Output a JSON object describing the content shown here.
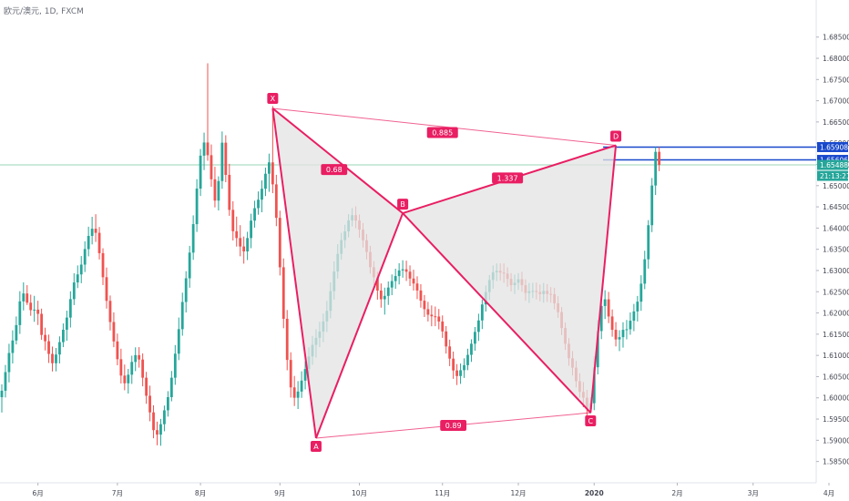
{
  "header": {
    "title": "欧元/澳元, 1D, FXCM"
  },
  "colors": {
    "up": "#26a69a",
    "down": "#ef5350",
    "pattern": "#e91e63",
    "fill": "#e3e3e3",
    "blue": "#1848cc",
    "green_line": "#9ad6b5",
    "axis_text": "#434651",
    "border": "#e0e3eb"
  },
  "chart_data": {
    "type": "candlestick",
    "title": "欧元/澳元, 1D, FXCM",
    "ylim": [
      1.583,
      1.6915
    ],
    "y_ticks": [
      "1.68500",
      "1.68000",
      "1.67500",
      "1.67000",
      "1.66500",
      "1.66000",
      "1.65500",
      "1.65000",
      "1.64500",
      "1.64000",
      "1.63500",
      "1.63000",
      "1.62500",
      "1.62000",
      "1.61500",
      "1.61000",
      "1.60500",
      "1.60000",
      "1.59500",
      "1.59000",
      "1.58500"
    ],
    "x_ticks": [
      {
        "label": "6月",
        "i": 10
      },
      {
        "label": "7月",
        "i": 32
      },
      {
        "label": "8月",
        "i": 55
      },
      {
        "label": "9月",
        "i": 77
      },
      {
        "label": "10月",
        "i": 99
      },
      {
        "label": "11月",
        "i": 122
      },
      {
        "label": "12月",
        "i": 143
      },
      {
        "label": "2020",
        "i": 164
      },
      {
        "label": "2月",
        "i": 187
      },
      {
        "label": "3月",
        "i": 208
      },
      {
        "label": "4月",
        "i": 229
      }
    ],
    "harmonic_pattern": {
      "points": [
        {
          "label": "X",
          "i": 75,
          "price": 1.6682
        },
        {
          "label": "A",
          "i": 87,
          "price": 1.5905
        },
        {
          "label": "B",
          "i": 111,
          "price": 1.6435
        },
        {
          "label": "C",
          "i": 163,
          "price": 1.5965
        },
        {
          "label": "D",
          "i": 170,
          "price": 1.6595
        }
      ],
      "ratios": [
        {
          "label": "0.68",
          "i": 92,
          "price": 1.6538
        },
        {
          "label": "0.885",
          "i": 122,
          "price": 1.6625
        },
        {
          "label": "1.337",
          "i": 140,
          "price": 1.6518
        },
        {
          "label": "0.89",
          "i": 125,
          "price": 1.5935
        }
      ]
    },
    "levels": [
      {
        "price": 1.65908,
        "label": "1.65908",
        "color": "#1848cc"
      },
      {
        "price": 1.65606,
        "label": "1.65606",
        "color": "#1848cc"
      },
      {
        "price": 1.65488,
        "label": "1.65488",
        "color": "#26a69a"
      }
    ],
    "countdown": "21:13:21",
    "candles": [
      [
        1.60015,
        1.6032,
        1.59653,
        1.60168
      ],
      [
        1.60168,
        1.60775,
        1.60009,
        1.60606
      ],
      [
        1.60606,
        1.61274,
        1.60365,
        1.61057
      ],
      [
        1.61057,
        1.61591,
        1.6081,
        1.61351
      ],
      [
        1.61351,
        1.61917,
        1.61259,
        1.61714
      ],
      [
        1.61714,
        1.62513,
        1.61506,
        1.62273
      ],
      [
        1.62273,
        1.6272,
        1.62059,
        1.62459
      ],
      [
        1.62459,
        1.62655,
        1.62188,
        1.62242
      ],
      [
        1.62242,
        1.62432,
        1.61933,
        1.62066
      ],
      [
        1.62066,
        1.62403,
        1.61791,
        1.62078
      ],
      [
        1.62078,
        1.62288,
        1.61717,
        1.61979
      ],
      [
        1.61979,
        1.62102,
        1.61366,
        1.61482
      ],
      [
        1.61482,
        1.61653,
        1.61117,
        1.61334
      ],
      [
        1.61334,
        1.6149,
        1.60822,
        1.61035
      ],
      [
        1.61035,
        1.61208,
        1.60621,
        1.60815
      ],
      [
        1.60815,
        1.61174,
        1.60624,
        1.61021
      ],
      [
        1.61021,
        1.61449,
        1.60811,
        1.61313
      ],
      [
        1.61313,
        1.61753,
        1.61195,
        1.61605
      ],
      [
        1.61605,
        1.62053,
        1.61346,
        1.61891
      ],
      [
        1.61891,
        1.62511,
        1.61657,
        1.62326
      ],
      [
        1.62326,
        1.62935,
        1.62186,
        1.62719
      ],
      [
        1.62719,
        1.6312,
        1.62586,
        1.62908
      ],
      [
        1.62908,
        1.63341,
        1.62701,
        1.63139
      ],
      [
        1.63139,
        1.63688,
        1.62964,
        1.63505
      ],
      [
        1.63505,
        1.64032,
        1.63334,
        1.63815
      ],
      [
        1.63815,
        1.64266,
        1.63615,
        1.63985
      ],
      [
        1.63985,
        1.64327,
        1.63673,
        1.63888
      ],
      [
        1.63888,
        1.64026,
        1.6326,
        1.63408
      ],
      [
        1.63408,
        1.63524,
        1.62656,
        1.62842
      ],
      [
        1.62842,
        1.6307,
        1.62103,
        1.62285
      ],
      [
        1.62285,
        1.62412,
        1.61587,
        1.61786
      ],
      [
        1.61786,
        1.62014,
        1.61194,
        1.61329
      ],
      [
        1.61329,
        1.61514,
        1.60767,
        1.6091
      ],
      [
        1.6091,
        1.61158,
        1.60338,
        1.60524
      ],
      [
        1.60524,
        1.60784,
        1.60178,
        1.60343
      ],
      [
        1.60343,
        1.60682,
        1.60101,
        1.60545
      ],
      [
        1.60545,
        1.60993,
        1.60329,
        1.60846
      ],
      [
        1.60846,
        1.6119,
        1.6063,
        1.61006
      ],
      [
        1.61006,
        1.61195,
        1.60711,
        1.60903
      ],
      [
        1.60903,
        1.61047,
        1.60271,
        1.60474
      ],
      [
        1.60474,
        1.60612,
        1.5986,
        1.60049
      ],
      [
        1.60049,
        1.60287,
        1.59448,
        1.59658
      ],
      [
        1.59658,
        1.59825,
        1.59048,
        1.59239
      ],
      [
        1.59239,
        1.59439,
        1.58882,
        1.59134
      ],
      [
        1.59134,
        1.59504,
        1.58871,
        1.59379
      ],
      [
        1.59379,
        1.59818,
        1.59212,
        1.59706
      ],
      [
        1.59706,
        1.60157,
        1.59558,
        1.60016
      ],
      [
        1.60016,
        1.60633,
        1.59918,
        1.60474
      ],
      [
        1.60474,
        1.61244,
        1.60307,
        1.6104
      ],
      [
        1.6104,
        1.61893,
        1.60889,
        1.61618
      ],
      [
        1.61618,
        1.62478,
        1.61464,
        1.62258
      ],
      [
        1.62258,
        1.62984,
        1.62012,
        1.62817
      ],
      [
        1.62817,
        1.63581,
        1.62594,
        1.63422
      ],
      [
        1.63422,
        1.64299,
        1.63251,
        1.64093
      ],
      [
        1.64093,
        1.65153,
        1.63909,
        1.6493
      ],
      [
        1.6493,
        1.65863,
        1.64755,
        1.65706
      ],
      [
        1.65706,
        1.66249,
        1.65366,
        1.66016
      ],
      [
        1.66016,
        1.67882,
        1.65586,
        1.65717
      ],
      [
        1.65717,
        1.6597,
        1.64972,
        1.65149
      ],
      [
        1.65149,
        1.65443,
        1.64487,
        1.64647
      ],
      [
        1.64647,
        1.65219,
        1.64415,
        1.65108
      ],
      [
        1.65108,
        1.66276,
        1.64925,
        1.66012
      ],
      [
        1.66012,
        1.66187,
        1.6508,
        1.65253
      ],
      [
        1.65253,
        1.65513,
        1.64288,
        1.64429
      ],
      [
        1.64429,
        1.64634,
        1.63708,
        1.63926
      ],
      [
        1.63926,
        1.6427,
        1.63564,
        1.63765
      ],
      [
        1.63765,
        1.64069,
        1.63336,
        1.63566
      ],
      [
        1.63566,
        1.63801,
        1.63162,
        1.6345
      ],
      [
        1.6345,
        1.63912,
        1.63246,
        1.63765
      ],
      [
        1.63765,
        1.64338,
        1.63526,
        1.64176
      ],
      [
        1.64176,
        1.64645,
        1.64011,
        1.64469
      ],
      [
        1.64469,
        1.64863,
        1.64315,
        1.64669
      ],
      [
        1.64669,
        1.65122,
        1.64373,
        1.64927
      ],
      [
        1.64927,
        1.65424,
        1.64754,
        1.6528
      ],
      [
        1.6528,
        1.65754,
        1.64854,
        1.65548
      ],
      [
        1.65548,
        1.66874,
        1.64822,
        1.6503
      ],
      [
        1.6503,
        1.65255,
        1.64045,
        1.64241
      ],
      [
        1.64241,
        1.64409,
        1.62883,
        1.63076
      ],
      [
        1.63076,
        1.63285,
        1.6164,
        1.61863
      ],
      [
        1.61863,
        1.62069,
        1.60649,
        1.60893
      ],
      [
        1.60893,
        1.61074,
        1.60007,
        1.60246
      ],
      [
        1.60246,
        1.60516,
        1.59807,
        1.60002
      ],
      [
        1.60002,
        1.60394,
        1.59737,
        1.60148
      ],
      [
        1.60148,
        1.60625,
        1.59999,
        1.60406
      ],
      [
        1.60406,
        1.60867,
        1.60199,
        1.60678
      ],
      [
        1.60678,
        1.61191,
        1.60441,
        1.60976
      ],
      [
        1.60976,
        1.61459,
        1.60778,
        1.61248
      ],
      [
        1.61248,
        1.61614,
        1.6095,
        1.61414
      ],
      [
        1.61414,
        1.61792,
        1.61194,
        1.61563
      ],
      [
        1.61563,
        1.61987,
        1.61314,
        1.61801
      ],
      [
        1.61801,
        1.62283,
        1.61551,
        1.6205
      ],
      [
        1.6205,
        1.6272,
        1.61874,
        1.62514
      ],
      [
        1.62514,
        1.63215,
        1.62315,
        1.62977
      ],
      [
        1.62977,
        1.63622,
        1.6281,
        1.63392
      ],
      [
        1.63392,
        1.63888,
        1.63254,
        1.63716
      ],
      [
        1.63716,
        1.64078,
        1.6353,
        1.63922
      ],
      [
        1.63922,
        1.64328,
        1.63779,
        1.64181
      ],
      [
        1.64181,
        1.64471,
        1.64039,
        1.64304
      ],
      [
        1.64304,
        1.64512,
        1.63997,
        1.64178
      ],
      [
        1.64178,
        1.6432,
        1.63771,
        1.63963
      ],
      [
        1.63963,
        1.64118,
        1.63541,
        1.63714
      ],
      [
        1.63714,
        1.63861,
        1.63262,
        1.63437
      ],
      [
        1.63437,
        1.63581,
        1.62928,
        1.63078
      ],
      [
        1.63078,
        1.6322,
        1.62656,
        1.62842
      ],
      [
        1.62842,
        1.62969,
        1.62313,
        1.62528
      ],
      [
        1.62528,
        1.62695,
        1.62124,
        1.62323
      ],
      [
        1.62323,
        1.62596,
        1.61961,
        1.62402
      ],
      [
        1.62402,
        1.62742,
        1.6219,
        1.62599
      ],
      [
        1.62599,
        1.62907,
        1.62419,
        1.62751
      ],
      [
        1.62751,
        1.63043,
        1.62569,
        1.62869
      ],
      [
        1.62869,
        1.63171,
        1.62672,
        1.63002
      ],
      [
        1.63002,
        1.63242,
        1.62831,
        1.63028
      ],
      [
        1.63028,
        1.63232,
        1.62753,
        1.62972
      ],
      [
        1.62972,
        1.63121,
        1.62634,
        1.62811
      ],
      [
        1.62811,
        1.63019,
        1.62528,
        1.62694
      ],
      [
        1.62694,
        1.62863,
        1.62326,
        1.62529
      ],
      [
        1.62529,
        1.62679,
        1.62125,
        1.62289
      ],
      [
        1.62289,
        1.62423,
        1.61905,
        1.62089
      ],
      [
        1.62089,
        1.62262,
        1.61799,
        1.61959
      ],
      [
        1.61959,
        1.62177,
        1.61686,
        1.61922
      ],
      [
        1.61922,
        1.62151,
        1.61688,
        1.61915
      ],
      [
        1.61915,
        1.62094,
        1.61614,
        1.61798
      ],
      [
        1.61798,
        1.61942,
        1.61413,
        1.61565
      ],
      [
        1.61565,
        1.61692,
        1.61043,
        1.61211
      ],
      [
        1.61211,
        1.61371,
        1.60747,
        1.60924
      ],
      [
        1.60924,
        1.6109,
        1.60448,
        1.60645
      ],
      [
        1.60645,
        1.60795,
        1.60302,
        1.60514
      ],
      [
        1.60514,
        1.60808,
        1.60329,
        1.60651
      ],
      [
        1.60651,
        1.60931,
        1.60469,
        1.6077
      ],
      [
        1.6077,
        1.61157,
        1.60652,
        1.61013
      ],
      [
        1.61013,
        1.61379,
        1.60847,
        1.61275
      ],
      [
        1.61275,
        1.61669,
        1.61111,
        1.61554
      ],
      [
        1.61554,
        1.61982,
        1.61341,
        1.61823
      ],
      [
        1.61823,
        1.62317,
        1.61621,
        1.62201
      ],
      [
        1.62201,
        1.62646,
        1.62033,
        1.62493
      ],
      [
        1.62493,
        1.62893,
        1.62302,
        1.62777
      ],
      [
        1.62777,
        1.63119,
        1.62572,
        1.62958
      ],
      [
        1.62958,
        1.63167,
        1.62751,
        1.62993
      ],
      [
        1.62993,
        1.63169,
        1.6276,
        1.62951
      ],
      [
        1.62951,
        1.63165,
        1.62711,
        1.62928
      ],
      [
        1.62928,
        1.63074,
        1.62616,
        1.62802
      ],
      [
        1.62802,
        1.62938,
        1.62509,
        1.62655
      ],
      [
        1.62655,
        1.62904,
        1.62446,
        1.62711
      ],
      [
        1.62711,
        1.62939,
        1.62542,
        1.62795
      ],
      [
        1.62795,
        1.6297,
        1.62499,
        1.62654
      ],
      [
        1.62654,
        1.62791,
        1.62286,
        1.6247
      ],
      [
        1.6247,
        1.62706,
        1.62237,
        1.62511
      ],
      [
        1.62511,
        1.6271,
        1.62351,
        1.62519
      ],
      [
        1.62519,
        1.62716,
        1.62319,
        1.62494
      ],
      [
        1.62494,
        1.62672,
        1.62275,
        1.62444
      ],
      [
        1.62444,
        1.62706,
        1.62242,
        1.6252
      ],
      [
        1.6252,
        1.62683,
        1.62258,
        1.62448
      ],
      [
        1.62448,
        1.6261,
        1.6224,
        1.62442
      ],
      [
        1.62442,
        1.6259,
        1.62084,
        1.62228
      ],
      [
        1.62228,
        1.62394,
        1.61885,
        1.6202
      ],
      [
        1.6202,
        1.62138,
        1.61478,
        1.61645
      ],
      [
        1.61645,
        1.61772,
        1.61129,
        1.61273
      ],
      [
        1.61273,
        1.61408,
        1.60757,
        1.60932
      ],
      [
        1.60932,
        1.61103,
        1.60527,
        1.60711
      ],
      [
        1.60711,
        1.60872,
        1.60246,
        1.60393
      ],
      [
        1.60393,
        1.6058,
        1.60007,
        1.6014
      ],
      [
        1.6014,
        1.60371,
        1.59781,
        1.60003
      ],
      [
        1.60003,
        1.60188,
        1.59569,
        1.59735
      ],
      [
        1.59735,
        1.60015,
        1.59632,
        1.59873
      ],
      [
        1.59873,
        1.6098,
        1.59709,
        1.6072
      ],
      [
        1.6072,
        1.61837,
        1.60552,
        1.61574
      ],
      [
        1.61574,
        1.62428,
        1.61383,
        1.62164
      ],
      [
        1.62164,
        1.62536,
        1.61857,
        1.62321
      ],
      [
        1.62321,
        1.62496,
        1.61761,
        1.61917
      ],
      [
        1.61917,
        1.62083,
        1.6144,
        1.61603
      ],
      [
        1.61603,
        1.61785,
        1.61212,
        1.61376
      ],
      [
        1.61376,
        1.61593,
        1.61101,
        1.6143
      ],
      [
        1.6143,
        1.61781,
        1.61183,
        1.61602
      ],
      [
        1.61602,
        1.61835,
        1.61378,
        1.61616
      ],
      [
        1.61616,
        1.62013,
        1.61487,
        1.61817
      ],
      [
        1.61817,
        1.62213,
        1.61571,
        1.62036
      ],
      [
        1.62036,
        1.62401,
        1.61799,
        1.62266
      ],
      [
        1.62266,
        1.62888,
        1.6205,
        1.6269
      ],
      [
        1.6269,
        1.63466,
        1.62561,
        1.63265
      ],
      [
        1.63265,
        1.64187,
        1.63044,
        1.64067
      ],
      [
        1.64067,
        1.65179,
        1.63905,
        1.65003
      ],
      [
        1.65003,
        1.65908,
        1.64779,
        1.65796
      ],
      [
        1.65796,
        1.65908,
        1.6534,
        1.65488
      ]
    ]
  }
}
